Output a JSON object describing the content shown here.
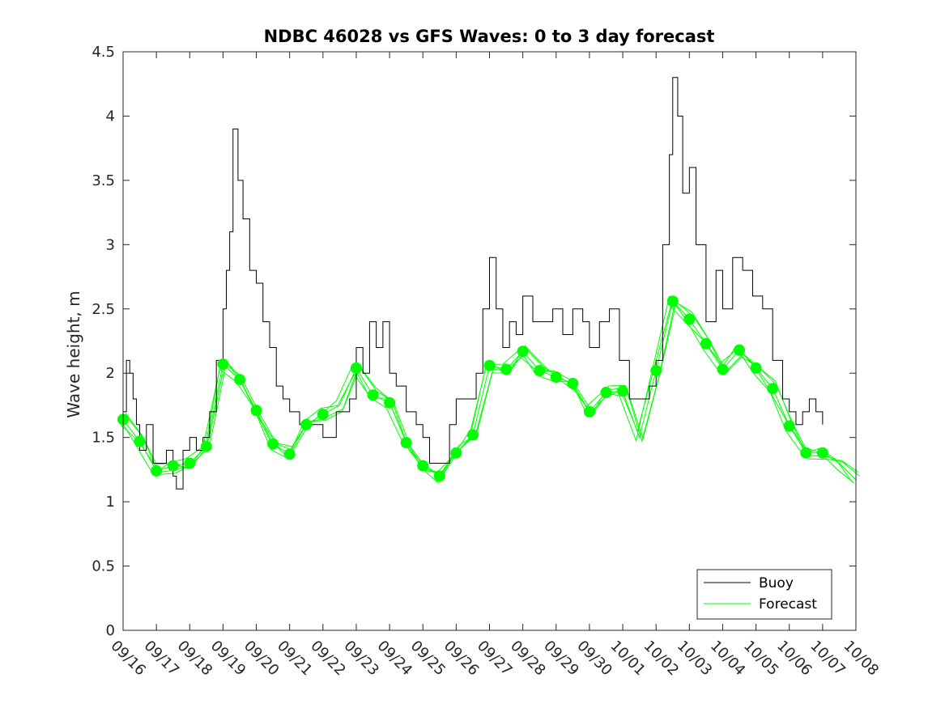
{
  "chart_data": {
    "type": "line",
    "title": "NDBC 46028 vs GFS Waves: 0 to 3 day forecast",
    "xlabel": "",
    "ylabel": "Wave height, m",
    "ylim": [
      0,
      4.5
    ],
    "yticks": [
      0,
      0.5,
      1,
      1.5,
      2,
      2.5,
      3,
      3.5,
      4,
      4.5
    ],
    "ytick_labels": [
      "0",
      "0.5",
      "1",
      "1.5",
      "2",
      "2.5",
      "3",
      "3.5",
      "4",
      "4.5"
    ],
    "xlim_days": [
      0,
      22
    ],
    "xtick_labels": [
      "09/16",
      "09/17",
      "09/18",
      "09/19",
      "09/20",
      "09/21",
      "09/22",
      "09/23",
      "09/24",
      "09/25",
      "09/26",
      "09/27",
      "09/28",
      "09/29",
      "09/30",
      "10/01",
      "10/02",
      "10/03",
      "10/04",
      "10/05",
      "10/06",
      "10/07",
      "10/08"
    ],
    "legend": {
      "position": "bottom-right",
      "entries": [
        "Buoy",
        "Forecast"
      ]
    },
    "colors": {
      "buoy": "#000000",
      "forecast": "#00ff00",
      "axis": "#262626"
    },
    "series": [
      {
        "name": "Buoy",
        "x": [
          0.0,
          0.1,
          0.2,
          0.3,
          0.4,
          0.5,
          0.7,
          0.9,
          1.1,
          1.3,
          1.5,
          1.6,
          1.8,
          2.0,
          2.2,
          2.4,
          2.6,
          2.8,
          3.0,
          3.1,
          3.2,
          3.3,
          3.45,
          3.6,
          3.8,
          4.0,
          4.2,
          4.4,
          4.6,
          4.8,
          5.0,
          5.3,
          5.6,
          6.0,
          6.4,
          6.8,
          7.0,
          7.2,
          7.4,
          7.6,
          7.8,
          8.0,
          8.2,
          8.5,
          8.8,
          9.0,
          9.2,
          9.5,
          9.8,
          10.0,
          10.3,
          10.6,
          10.8,
          11.0,
          11.2,
          11.4,
          11.6,
          11.8,
          12.0,
          12.3,
          12.6,
          12.9,
          13.2,
          13.5,
          13.8,
          14.0,
          14.3,
          14.6,
          14.9,
          15.2,
          15.5,
          15.8,
          16.0,
          16.2,
          16.4,
          16.5,
          16.65,
          16.8,
          17.0,
          17.2,
          17.5,
          17.8,
          18.0,
          18.3,
          18.6,
          18.9,
          19.2,
          19.5,
          19.8,
          20.0,
          20.2,
          20.4,
          20.6,
          20.8,
          21.0
        ],
        "values": [
          1.7,
          2.1,
          2.0,
          1.8,
          1.6,
          1.4,
          1.6,
          1.3,
          1.3,
          1.4,
          1.2,
          1.1,
          1.4,
          1.5,
          1.4,
          1.5,
          1.7,
          2.1,
          2.5,
          2.8,
          3.1,
          3.9,
          3.5,
          3.2,
          2.8,
          2.7,
          2.4,
          2.2,
          1.9,
          1.8,
          1.7,
          1.6,
          1.6,
          1.5,
          1.7,
          1.8,
          2.2,
          2.0,
          2.4,
          2.2,
          2.4,
          2.0,
          1.9,
          1.7,
          1.6,
          1.5,
          1.3,
          1.3,
          1.6,
          1.8,
          1.8,
          2.0,
          2.5,
          2.9,
          2.5,
          2.2,
          2.4,
          2.3,
          2.6,
          2.4,
          2.4,
          2.5,
          2.3,
          2.5,
          2.4,
          2.2,
          2.4,
          2.5,
          2.1,
          1.8,
          1.8,
          1.9,
          2.1,
          3.0,
          3.7,
          4.3,
          4.0,
          3.4,
          3.6,
          3.0,
          2.4,
          2.8,
          2.5,
          2.9,
          2.8,
          2.6,
          2.5,
          2.1,
          1.8,
          1.7,
          1.6,
          1.7,
          1.8,
          1.7,
          1.6
        ]
      },
      {
        "name": "Forecast",
        "x": [
          0.0,
          0.5,
          1.0,
          1.5,
          2.0,
          2.5,
          3.0,
          3.5,
          4.0,
          4.5,
          5.0,
          5.5,
          6.0,
          6.5,
          7.0,
          7.5,
          8.0,
          8.5,
          9.0,
          9.5,
          10.0,
          10.5,
          11.0,
          11.5,
          12.0,
          12.5,
          13.0,
          13.5,
          14.0,
          14.5,
          15.0,
          15.5,
          16.0,
          16.5,
          17.0,
          17.5,
          18.0,
          18.5,
          19.0,
          19.5,
          20.0,
          20.5,
          21.0,
          21.5,
          22.0
        ],
        "values": [
          1.64,
          1.47,
          1.24,
          1.28,
          1.3,
          1.43,
          2.07,
          1.95,
          1.71,
          1.45,
          1.37,
          1.6,
          1.68,
          1.75,
          2.04,
          1.83,
          1.77,
          1.46,
          1.28,
          1.2,
          1.38,
          1.52,
          2.06,
          2.03,
          2.17,
          2.02,
          1.97,
          1.92,
          1.7,
          1.85,
          1.86,
          1.5,
          2.02,
          2.56,
          2.42,
          2.23,
          2.03,
          2.18,
          2.04,
          1.88,
          1.59,
          1.38,
          1.38,
          1.3,
          1.17
        ]
      }
    ],
    "forecast_markers": {
      "x": [
        0.0,
        0.5,
        1.0,
        1.5,
        2.0,
        2.5,
        3.0,
        3.5,
        4.0,
        4.5,
        5.0,
        5.5,
        6.0,
        7.0,
        7.5,
        8.0,
        8.5,
        9.0,
        9.5,
        10.0,
        10.5,
        11.0,
        11.5,
        12.0,
        12.5,
        13.0,
        13.5,
        14.0,
        14.5,
        15.0,
        16.0,
        16.5,
        17.0,
        17.5,
        18.0,
        18.5,
        19.0,
        19.5,
        20.0,
        20.5,
        21.0
      ],
      "values": [
        1.64,
        1.47,
        1.24,
        1.28,
        1.3,
        1.43,
        2.07,
        1.95,
        1.71,
        1.45,
        1.37,
        1.6,
        1.68,
        2.04,
        1.83,
        1.77,
        1.46,
        1.28,
        1.2,
        1.38,
        1.52,
        2.06,
        2.03,
        2.17,
        2.02,
        1.97,
        1.92,
        1.7,
        1.85,
        1.86,
        2.02,
        2.56,
        2.42,
        2.23,
        2.03,
        2.18,
        2.04,
        1.88,
        1.59,
        1.38,
        1.38
      ]
    }
  }
}
